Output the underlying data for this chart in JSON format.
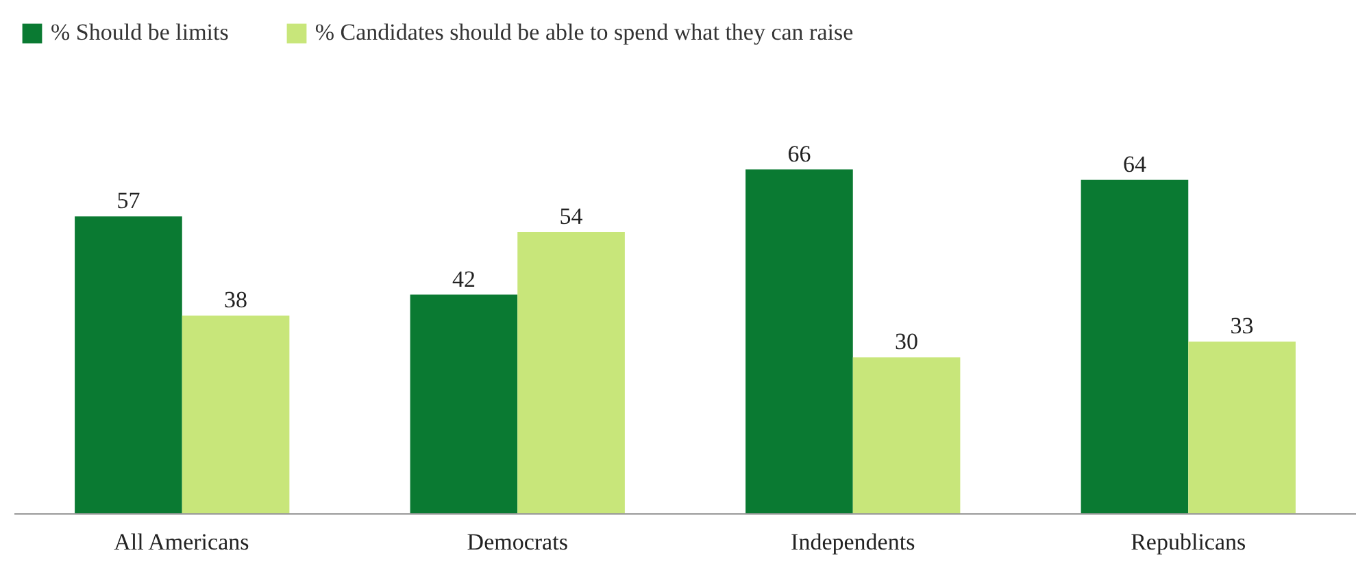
{
  "chart_data": {
    "type": "bar",
    "categories": [
      "All Americans",
      "Democrats",
      "Independents",
      "Republicans"
    ],
    "series": [
      {
        "name": "% Should be limits",
        "color": "#0a7a32",
        "values": [
          57,
          42,
          66,
          64
        ]
      },
      {
        "name": "% Candidates should be able to spend what they can raise",
        "color": "#c8e67a",
        "values": [
          38,
          54,
          30,
          33
        ]
      }
    ],
    "data_labels": true,
    "legend": "top left",
    "grid": false
  }
}
